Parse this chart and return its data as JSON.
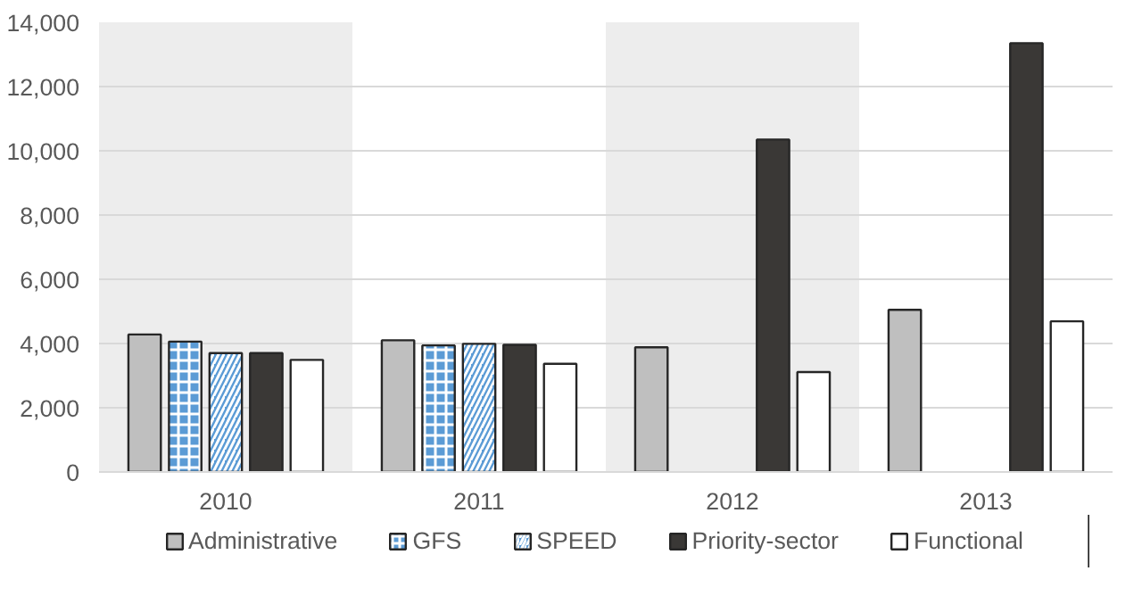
{
  "chart_data": {
    "type": "bar",
    "categories": [
      "2010",
      "2011",
      "2012",
      "2013"
    ],
    "series": [
      {
        "name": "Administrative",
        "color": "#bfbfbf",
        "values": [
          4280,
          4100,
          3880,
          5050
        ]
      },
      {
        "name": "GFS",
        "color": "#5b9bd5",
        "values": [
          4060,
          3940,
          null,
          null
        ]
      },
      {
        "name": "SPEED",
        "color": "#5b9bd5",
        "values": [
          3700,
          3990,
          null,
          null
        ]
      },
      {
        "name": "Priority-sector",
        "color": "#3a3836",
        "values": [
          3700,
          3960,
          10350,
          13350
        ]
      },
      {
        "name": "Functional",
        "color": "#ffffff",
        "values": [
          3490,
          3370,
          3110,
          4690
        ]
      }
    ],
    "ylim": [
      0,
      14000
    ],
    "yticks": [
      {
        "value": 0,
        "label": "0"
      },
      {
        "value": 2000,
        "label": "2,000"
      },
      {
        "value": 4000,
        "label": "4,000"
      },
      {
        "value": 6000,
        "label": "6,000"
      },
      {
        "value": 8000,
        "label": "8,000"
      },
      {
        "value": 10000,
        "label": "10,000"
      },
      {
        "value": 12000,
        "label": "12,000"
      },
      {
        "value": 14000,
        "label": "14,000"
      }
    ],
    "bands": [
      {
        "axis": "x",
        "from": "2010",
        "to": "2010",
        "color": "#ededed"
      },
      {
        "axis": "x",
        "from": "2012",
        "to": "2012",
        "color": "#ededed"
      }
    ],
    "grid": "y",
    "legend": "bottom"
  }
}
